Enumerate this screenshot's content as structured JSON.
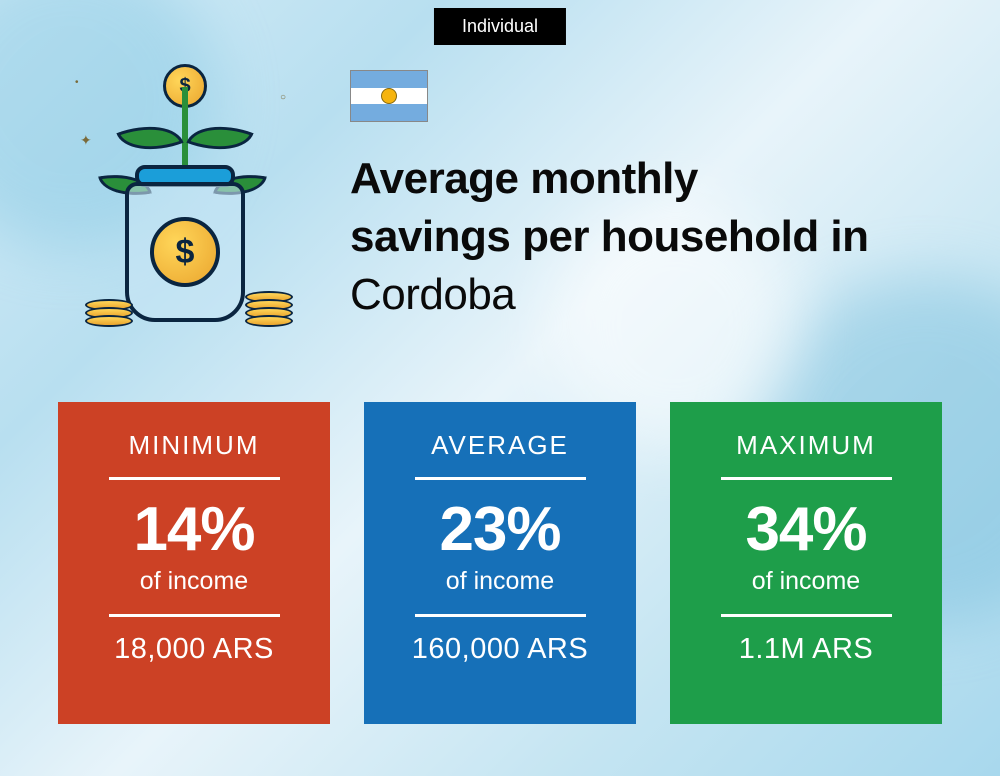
{
  "badge": "Individual",
  "flag": {
    "country": "Argentina",
    "stripe_color": "#74acdf",
    "mid_color": "#ffffff",
    "sun_color": "#f6b40e"
  },
  "title_line1": "Average monthly",
  "title_line2": "savings per household in",
  "location": "Cordoba",
  "title_fontsize": 44,
  "title_color": "#0a0a0a",
  "background_gradient": [
    "#d4ecf7",
    "#b8dff0",
    "#e8f4fa",
    "#c5e5f2",
    "#a8d8ed"
  ],
  "cards": [
    {
      "key": "minimum",
      "label": "MINIMUM",
      "percent": "14%",
      "sub": "of income",
      "amount": "18,000 ARS",
      "bg_color": "#cc4125"
    },
    {
      "key": "average",
      "label": "AVERAGE",
      "percent": "23%",
      "sub": "of income",
      "amount": "160,000 ARS",
      "bg_color": "#1670b8"
    },
    {
      "key": "maximum",
      "label": "MAXIMUM",
      "percent": "34%",
      "sub": "of income",
      "amount": "1.1M ARS",
      "bg_color": "#1e9e4a"
    }
  ],
  "card_text_color": "#ffffff",
  "card_label_fontsize": 26,
  "card_percent_fontsize": 62,
  "card_sub_fontsize": 25,
  "card_amount_fontsize": 29,
  "illustration": {
    "jar_outline": "#0a2540",
    "jar_fill": "rgba(200,230,245,0.6)",
    "lid_color": "#1b9ed9",
    "coin_gradient": [
      "#ffd659",
      "#eaa52e"
    ],
    "leaf_color": "#2a8f3a"
  }
}
